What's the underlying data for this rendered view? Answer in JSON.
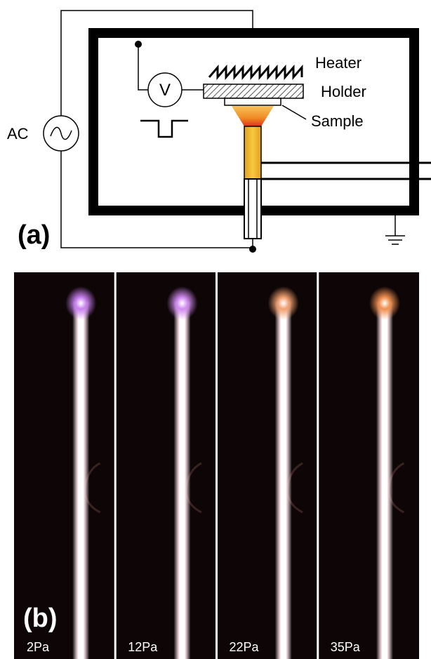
{
  "panel_a": {
    "label": "(a)",
    "ac": "AC",
    "voltmeter": "V",
    "heater": "Heater",
    "holder": "Holder",
    "sample": "Sample"
  },
  "panel_b": {
    "label": "(b)",
    "photos": [
      "2Pa",
      "12Pa",
      "22Pa",
      "35Pa"
    ]
  }
}
